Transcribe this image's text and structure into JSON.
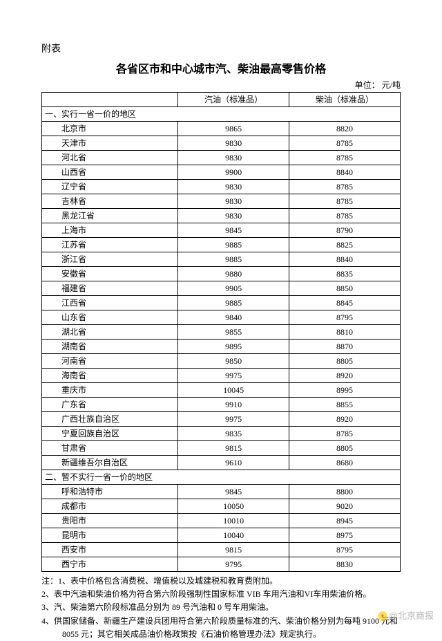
{
  "appendix": "附表",
  "title": "各省区市和中心城市汽、柴油最高零售价格",
  "unit": "单位：  元/吨",
  "columns": {
    "region": "",
    "gasoline": "汽油（标准品）",
    "diesel": "柴油（标准品）"
  },
  "section1": "一、实行一省一价的地区",
  "section2": "二、暂不实行一省一价的地区",
  "rows1": [
    {
      "region": "北京市",
      "gasoline": "9865",
      "diesel": "8820"
    },
    {
      "region": "天津市",
      "gasoline": "9830",
      "diesel": "8785"
    },
    {
      "region": "河北省",
      "gasoline": "9830",
      "diesel": "8785"
    },
    {
      "region": "山西省",
      "gasoline": "9900",
      "diesel": "8840"
    },
    {
      "region": "辽宁省",
      "gasoline": "9830",
      "diesel": "8785"
    },
    {
      "region": "吉林省",
      "gasoline": "9830",
      "diesel": "8785"
    },
    {
      "region": "黑龙江省",
      "gasoline": "9830",
      "diesel": "8785"
    },
    {
      "region": "上海市",
      "gasoline": "9845",
      "diesel": "8790"
    },
    {
      "region": "江苏省",
      "gasoline": "9885",
      "diesel": "8825"
    },
    {
      "region": "浙江省",
      "gasoline": "9885",
      "diesel": "8840"
    },
    {
      "region": "安徽省",
      "gasoline": "9880",
      "diesel": "8835"
    },
    {
      "region": "福建省",
      "gasoline": "9905",
      "diesel": "8850"
    },
    {
      "region": "江西省",
      "gasoline": "9885",
      "diesel": "8845"
    },
    {
      "region": "山东省",
      "gasoline": "9840",
      "diesel": "8795"
    },
    {
      "region": "湖北省",
      "gasoline": "9855",
      "diesel": "8810"
    },
    {
      "region": "湖南省",
      "gasoline": "9895",
      "diesel": "8870"
    },
    {
      "region": "河南省",
      "gasoline": "9850",
      "diesel": "8805"
    },
    {
      "region": "海南省",
      "gasoline": "9975",
      "diesel": "8920"
    },
    {
      "region": "重庆市",
      "gasoline": "10045",
      "diesel": "8995"
    },
    {
      "region": "广东省",
      "gasoline": "9910",
      "diesel": "8855"
    },
    {
      "region": "广西壮族自治区",
      "gasoline": "9975",
      "diesel": "8920"
    },
    {
      "region": "宁夏回族自治区",
      "gasoline": "9835",
      "diesel": "8785"
    },
    {
      "region": "甘肃省",
      "gasoline": "9815",
      "diesel": "8805"
    },
    {
      "region": "新疆维吾尔自治区",
      "gasoline": "9610",
      "diesel": "8680"
    }
  ],
  "rows2": [
    {
      "region": "呼和浩特市",
      "gasoline": "9845",
      "diesel": "8800"
    },
    {
      "region": "成都市",
      "gasoline": "10050",
      "diesel": "9020"
    },
    {
      "region": "贵阳市",
      "gasoline": "10010",
      "diesel": "8945"
    },
    {
      "region": "昆明市",
      "gasoline": "10040",
      "diesel": "8975"
    },
    {
      "region": "西安市",
      "gasoline": "9815",
      "diesel": "8795"
    },
    {
      "region": "西宁市",
      "gasoline": "9795",
      "diesel": "8830"
    }
  ],
  "notes": [
    "注：1、表中价格包含消费税、增值税以及城建税和教育费附加。",
    "2、表中汽油和柴油价格为符合第六阶段强制性国家标准 VIB 车用汽油和VI车用柴油价格。",
    "3、汽、柴油第六阶段标准品分别为 89 号汽油和 0 号车用柴油。",
    "4、供国家储备、新疆生产建设兵团用符合第六阶段质量标准的汽、柴油价格分别为每吨 9100 元和 8055 元；其它相关成品油价格政策按《石油价格管理办法》规定执行。"
  ],
  "watermark": "@北京商报"
}
